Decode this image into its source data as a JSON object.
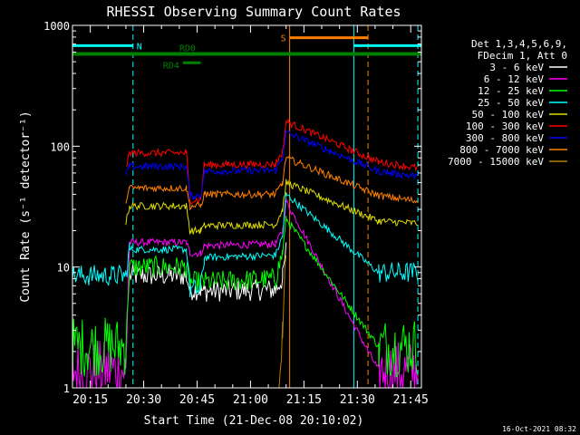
{
  "chart_data": {
    "type": "line",
    "title": "RHESSI Observing Summary Count Rates",
    "xlabel": "Start Time (21-Dec-08 20:10:02)",
    "ylabel": "Count Rate (s⁻¹ detector⁻¹)",
    "y_scale": "log",
    "ylim": [
      1,
      1000
    ],
    "xlim": [
      "20:10",
      "21:48"
    ],
    "x_ticks": [
      "20:15",
      "20:30",
      "20:45",
      "21:00",
      "21:15",
      "21:30",
      "21:45"
    ],
    "y_ticks": [
      "1",
      "10",
      "100",
      "1000"
    ],
    "timestamp": "16-Oct-2021 08:32",
    "legend_header": [
      "Det 1,3,4,5,6,9,",
      "FDecim 1, Att 0"
    ],
    "legend_position": "right",
    "series": [
      {
        "name": "3 - 6 keV",
        "color": "#ffffff",
        "x": [
          "20:10",
          "20:25",
          "20:26",
          "20:42",
          "20:43",
          "20:46",
          "20:47",
          "21:07",
          "21:09",
          "21:10",
          "21:36",
          "21:47"
        ],
        "y": [
          null,
          null,
          8.5,
          8.5,
          6.5,
          6.5,
          6.3,
          6.5,
          8,
          14,
          null,
          null
        ]
      },
      {
        "name": "6 - 12 keV",
        "color": "#ff00ff",
        "x": [
          "20:10",
          "20:25",
          "20:26",
          "20:42",
          "20:43",
          "20:46",
          "20:47",
          "21:07",
          "21:09",
          "21:10",
          "21:36",
          "21:47"
        ],
        "y": [
          1.4,
          1.4,
          16,
          16,
          13,
          13,
          15,
          15.5,
          20,
          35,
          1.4,
          1.4
        ]
      },
      {
        "name": "12 - 25 keV",
        "color": "#00ff00",
        "x": [
          "20:10",
          "20:25",
          "20:26",
          "20:42",
          "20:43",
          "20:46",
          "20:47",
          "21:07",
          "21:09",
          "21:10",
          "21:36",
          "21:47"
        ],
        "y": [
          2.2,
          2.2,
          10,
          10,
          7.5,
          7.5,
          7.5,
          8,
          13,
          25,
          2.2,
          2.2
        ]
      },
      {
        "name": "25 - 50 keV",
        "color": "#00ffff",
        "x": [
          "20:10",
          "20:25",
          "20:26",
          "20:42",
          "20:43",
          "20:46",
          "20:47",
          "21:07",
          "21:09",
          "21:10",
          "21:36",
          "21:47"
        ],
        "y": [
          8.5,
          8.5,
          14,
          14,
          6.5,
          6.5,
          12,
          12.5,
          18,
          40,
          9,
          9
        ]
      },
      {
        "name": "50 - 100 keV",
        "color": "#dddd00",
        "x": [
          "20:10",
          "20:25",
          "20:26",
          "20:42",
          "20:43",
          "20:46",
          "20:47",
          "21:07",
          "21:09",
          "21:10",
          "21:36",
          "21:47"
        ],
        "y": [
          null,
          23,
          32,
          32,
          20,
          20,
          22,
          22.5,
          30,
          50,
          24,
          23
        ]
      },
      {
        "name": "100 - 300 keV",
        "color": "#ff0000",
        "x": [
          "20:10",
          "20:25",
          "20:26",
          "20:42",
          "20:43",
          "20:46",
          "20:47",
          "21:07",
          "21:09",
          "21:10",
          "21:36",
          "21:47"
        ],
        "y": [
          null,
          65,
          88,
          88,
          36,
          36,
          70,
          71,
          90,
          160,
          74,
          66
        ]
      },
      {
        "name": "300 - 800 keV",
        "color": "#0000ff",
        "x": [
          "20:10",
          "20:25",
          "20:26",
          "20:42",
          "20:43",
          "20:46",
          "20:47",
          "21:07",
          "21:09",
          "21:10",
          "21:36",
          "21:47"
        ],
        "y": [
          null,
          57,
          68,
          68,
          39,
          39,
          62,
          63,
          80,
          130,
          62,
          56
        ]
      },
      {
        "name": "800 - 7000 keV",
        "color": "#ff8000",
        "x": [
          "20:10",
          "20:25",
          "20:26",
          "20:42",
          "20:43",
          "20:46",
          "20:47",
          "21:07",
          "21:09",
          "21:10",
          "21:36",
          "21:47"
        ],
        "y": [
          null,
          36,
          45,
          45,
          32,
          32,
          40,
          40,
          50,
          80,
          39,
          35
        ]
      },
      {
        "name": "7000 - 15000 keV",
        "color": "#b08000",
        "x": [
          "20:10",
          "21:08",
          "21:09",
          "21:10"
        ],
        "y": [
          null,
          1,
          3,
          15
        ]
      }
    ],
    "state_bars": [
      {
        "label": "N",
        "color": "#00ffff",
        "y": 680
      },
      {
        "label": "S",
        "color": "#ff8000",
        "y": 790
      },
      {
        "label": "RD0",
        "color": "#008000",
        "y": 580
      },
      {
        "label": "RD4",
        "color": "#008000",
        "y": 490
      }
    ],
    "vertical_lines": [
      {
        "x": "20:10",
        "color": "#00ffff",
        "style": "solid"
      },
      {
        "x": "20:27",
        "color": "#00ffff",
        "style": "dashed"
      },
      {
        "x": "21:11",
        "color": "#ff8000",
        "style": "solid"
      },
      {
        "x": "21:29",
        "color": "#00ffff",
        "style": "solid"
      },
      {
        "x": "21:33",
        "color": "#ff8000",
        "style": "dashed"
      },
      {
        "x": "21:47",
        "color": "#00ffff",
        "style": "dashed"
      }
    ]
  }
}
